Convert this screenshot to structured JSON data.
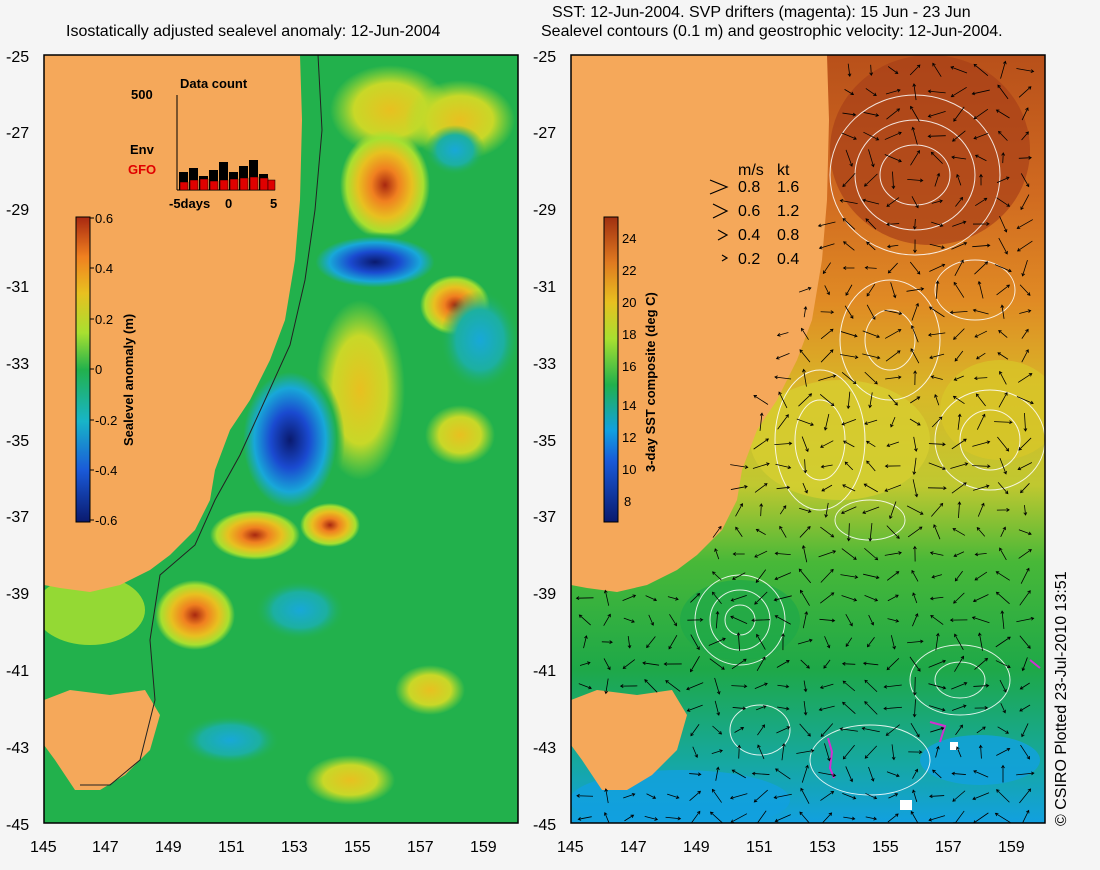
{
  "left_panel": {
    "title": "Isostatically adjusted sealevel anomaly: 12-Jun-2004",
    "colorbar": {
      "label": "Sealevel anomaly (m)",
      "ticks": [
        "0.6",
        "0.4",
        "0.2",
        "0",
        "-0.2",
        "-0.4",
        "-0.6"
      ]
    },
    "data_count": {
      "title": "Data count",
      "ymax_label": "500",
      "series": [
        "Env",
        "GFO"
      ],
      "x_ticks": [
        "-5days",
        "0",
        "5"
      ]
    }
  },
  "right_panel": {
    "title_line1": "SST: 12-Jun-2004. SVP drifters (magenta): 15 Jun - 23 Jun",
    "title_line2": "Sealevel contours (0.1 m) and geostrophic velocity: 12-Jun-2004.",
    "colorbar": {
      "label": "3-day SST composite (deg C)",
      "ticks": [
        "24",
        "22",
        "20",
        "18",
        "16",
        "14",
        "12",
        "10",
        "8"
      ]
    },
    "velocity_legend": {
      "headers": [
        "m/s",
        "kt"
      ],
      "rows": [
        [
          "0.8",
          "1.6"
        ],
        [
          "0.6",
          "1.2"
        ],
        [
          "0.4",
          "0.8"
        ],
        [
          "0.2",
          "0.4"
        ]
      ]
    }
  },
  "axes": {
    "y_ticks": [
      "-25",
      "-27",
      "-29",
      "-31",
      "-33",
      "-35",
      "-37",
      "-39",
      "-41",
      "-43",
      "-45"
    ],
    "x_ticks": [
      "145",
      "147",
      "149",
      "151",
      "153",
      "155",
      "157",
      "159"
    ]
  },
  "credit": "© CSIRO Plotted 23-Jul-2010 13:51",
  "colors": {
    "land": "#f5a85a",
    "ocean_green": "#22b14c",
    "anomaly_low": "#0a1a6e",
    "anomaly_high": "#b42d10",
    "sst_warm": "#c86420",
    "sst_cold": "#12a0e0"
  }
}
